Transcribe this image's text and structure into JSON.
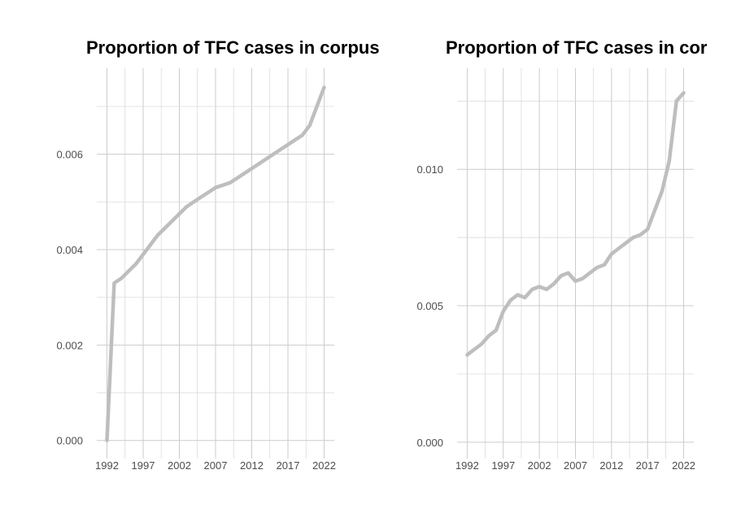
{
  "chart_data": [
    {
      "type": "line",
      "title": "Proportion of TFC cases in corpus",
      "xlabel": "",
      "ylabel": "",
      "x_ticks": [
        "1992",
        "1997",
        "2002",
        "2007",
        "2012",
        "2017",
        "2022"
      ],
      "y_ticks": [
        "0.000",
        "0.002",
        "0.004",
        "0.006"
      ],
      "xlim": [
        1990.6,
        2023.4
      ],
      "ylim": [
        -0.00038,
        0.0078
      ],
      "grid": true,
      "legend": "none",
      "series": [
        {
          "color": "#bebebe",
          "x": [
            1992,
            1993,
            1994,
            1995,
            1996,
            1997,
            1998,
            1999,
            2000,
            2001,
            2002,
            2003,
            2004,
            2005,
            2006,
            2007,
            2008,
            2009,
            2010,
            2011,
            2012,
            2013,
            2014,
            2015,
            2016,
            2017,
            2018,
            2019,
            2020,
            2021,
            2022
          ],
          "y": [
            0.0,
            0.0033,
            0.0034,
            0.00355,
            0.0037,
            0.0039,
            0.0041,
            0.0043,
            0.00445,
            0.0046,
            0.00475,
            0.0049,
            0.005,
            0.0051,
            0.0052,
            0.0053,
            0.00535,
            0.0054,
            0.0055,
            0.0056,
            0.0057,
            0.0058,
            0.0059,
            0.006,
            0.0061,
            0.0062,
            0.0063,
            0.0064,
            0.0066,
            0.007,
            0.0074
          ]
        }
      ]
    },
    {
      "type": "line",
      "title": "Proportion of TFC cases in cor",
      "xlabel": "",
      "ylabel": "",
      "x_ticks": [
        "1992",
        "1997",
        "2002",
        "2007",
        "2012",
        "2017",
        "2022"
      ],
      "y_ticks": [
        "0.000",
        "0.005",
        "0.010"
      ],
      "xlim": [
        1990.6,
        2023.4
      ],
      "ylim": [
        -0.0006,
        0.0137
      ],
      "grid": true,
      "legend": "none",
      "series": [
        {
          "color": "#bebebe",
          "x": [
            1992,
            1993,
            1994,
            1995,
            1996,
            1997,
            1998,
            1999,
            2000,
            2001,
            2002,
            2003,
            2004,
            2005,
            2006,
            2007,
            2008,
            2009,
            2010,
            2011,
            2012,
            2013,
            2014,
            2015,
            2016,
            2017,
            2018,
            2019,
            2020,
            2021,
            2022
          ],
          "y": [
            0.0032,
            0.0034,
            0.0036,
            0.0039,
            0.0041,
            0.0048,
            0.0052,
            0.0054,
            0.0053,
            0.0056,
            0.0057,
            0.0056,
            0.0058,
            0.0061,
            0.0062,
            0.0059,
            0.006,
            0.0062,
            0.0064,
            0.0065,
            0.0069,
            0.0071,
            0.0073,
            0.0075,
            0.0076,
            0.0078,
            0.0085,
            0.0092,
            0.0103,
            0.0125,
            0.0128
          ]
        }
      ]
    }
  ]
}
